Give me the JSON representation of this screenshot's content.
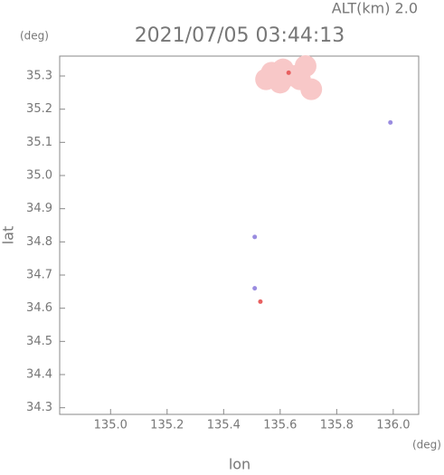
{
  "chart_data": {
    "type": "scatter",
    "title": "2021/07/05 03:44:13",
    "annotation": "ALT(km) 2.0",
    "x_label": "lon",
    "y_label": "lat",
    "x_unit": "(deg)",
    "y_unit": "(deg)",
    "xlim": [
      134.82,
      136.09
    ],
    "ylim": [
      34.28,
      35.36
    ],
    "xticks": [
      {
        "value": 135,
        "label": "135.0"
      },
      135.2,
      135.4,
      135.6,
      135.8,
      {
        "value": 136,
        "label": "136.0"
      }
    ],
    "yticks": [
      34.3,
      34.4,
      34.5,
      34.6,
      34.7,
      34.8,
      34.9,
      {
        "value": 35,
        "label": "35.0"
      },
      35.1,
      35.2,
      35.3
    ],
    "series": [
      {
        "color": "#f8c8c8",
        "x": [
          135.57,
          135.61,
          135.65,
          135.69,
          135.6,
          135.71,
          135.67,
          135.55
        ],
        "y": [
          35.31,
          35.32,
          35.3,
          35.33,
          35.28,
          35.26,
          35.29,
          35.29
        ]
      },
      {
        "color": "#9a8ce0",
        "x": [
          135.99,
          135.51,
          135.51
        ],
        "y": [
          35.16,
          34.815,
          34.66
        ]
      },
      {
        "color": "#e86060",
        "x": [
          135.53,
          135.63
        ],
        "y": [
          34.62,
          35.31
        ]
      }
    ]
  }
}
